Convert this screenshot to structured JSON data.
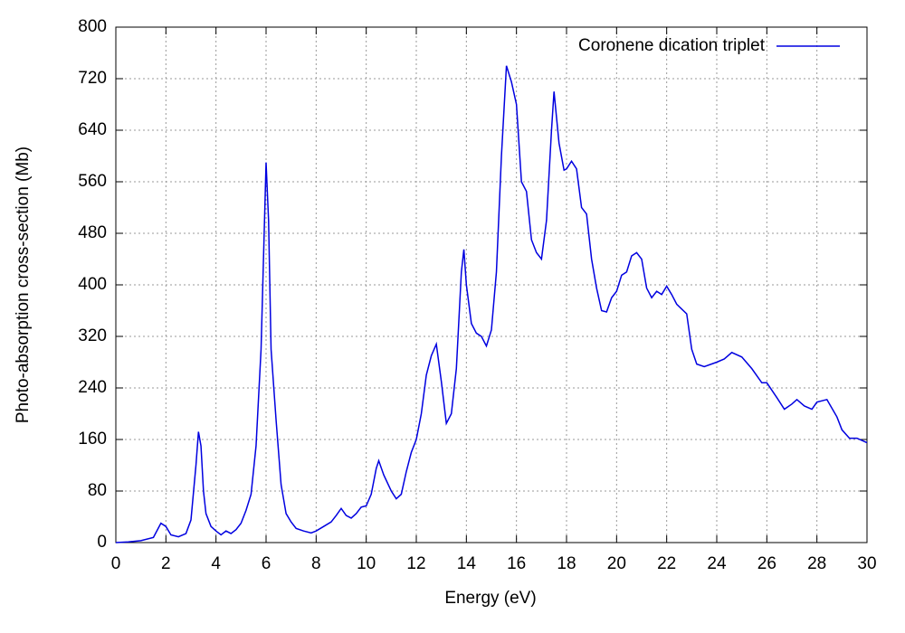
{
  "chart_data": {
    "type": "line",
    "xlabel": "Energy (eV)",
    "ylabel": "Photo-absorption cross-section (Mb)",
    "x": [
      0,
      0.5,
      1.0,
      1.5,
      1.8,
      2.0,
      2.2,
      2.5,
      2.8,
      3.0,
      3.2,
      3.3,
      3.4,
      3.5,
      3.6,
      3.8,
      4.0,
      4.2,
      4.4,
      4.6,
      4.8,
      5.0,
      5.2,
      5.4,
      5.6,
      5.8,
      6.0,
      6.1,
      6.2,
      6.4,
      6.6,
      6.8,
      7.0,
      7.2,
      7.5,
      7.8,
      8.0,
      8.3,
      8.6,
      8.8,
      9.0,
      9.2,
      9.4,
      9.6,
      9.8,
      10.0,
      10.2,
      10.4,
      10.5,
      10.7,
      11.0,
      11.2,
      11.4,
      11.6,
      11.8,
      12.0,
      12.2,
      12.4,
      12.6,
      12.8,
      13.0,
      13.2,
      13.4,
      13.6,
      13.8,
      13.9,
      14.0,
      14.2,
      14.4,
      14.6,
      14.8,
      15.0,
      15.2,
      15.4,
      15.6,
      15.8,
      16.0,
      16.2,
      16.4,
      16.6,
      16.8,
      17.0,
      17.2,
      17.4,
      17.5,
      17.7,
      17.9,
      18.0,
      18.2,
      18.4,
      18.6,
      18.8,
      19.0,
      19.2,
      19.4,
      19.6,
      19.8,
      20.0,
      20.2,
      20.4,
      20.6,
      20.8,
      21.0,
      21.2,
      21.4,
      21.6,
      21.8,
      22.0,
      22.2,
      22.4,
      22.8,
      23.0,
      23.2,
      23.5,
      24.0,
      24.3,
      24.6,
      25.0,
      25.4,
      25.8,
      26.0,
      26.4,
      26.7,
      27.0,
      27.2,
      27.5,
      27.8,
      28.0,
      28.4,
      28.8,
      29.0,
      29.3,
      29.6,
      30.0
    ],
    "series": [
      {
        "name": "Coronene dication triplet",
        "color": "#0000e0",
        "values": [
          0,
          1,
          3,
          8,
          30,
          25,
          12,
          9,
          14,
          35,
          120,
          172,
          150,
          80,
          45,
          25,
          18,
          12,
          18,
          14,
          20,
          30,
          50,
          75,
          150,
          300,
          590,
          500,
          300,
          190,
          90,
          45,
          32,
          22,
          18,
          15,
          18,
          25,
          32,
          42,
          53,
          42,
          38,
          45,
          55,
          57,
          75,
          115,
          127,
          105,
          80,
          68,
          75,
          110,
          140,
          160,
          200,
          260,
          290,
          308,
          250,
          185,
          200,
          270,
          420,
          455,
          400,
          340,
          325,
          320,
          305,
          330,
          420,
          600,
          740,
          715,
          680,
          560,
          545,
          470,
          450,
          440,
          500,
          640,
          700,
          620,
          578,
          580,
          592,
          580,
          520,
          510,
          440,
          395,
          360,
          358,
          380,
          390,
          415,
          420,
          445,
          450,
          440,
          395,
          380,
          390,
          385,
          398,
          385,
          370,
          355,
          300,
          277,
          273,
          280,
          285,
          295,
          288,
          270,
          248,
          248,
          225,
          207,
          215,
          222,
          212,
          207,
          218,
          222,
          195,
          175,
          162,
          162,
          155
        ]
      }
    ],
    "xlim": [
      0,
      30
    ],
    "ylim": [
      0,
      800
    ],
    "xticks": [
      0,
      2,
      4,
      6,
      8,
      10,
      12,
      14,
      16,
      18,
      20,
      22,
      24,
      26,
      28,
      30
    ],
    "yticks": [
      0,
      80,
      160,
      240,
      320,
      400,
      480,
      560,
      640,
      720,
      800
    ],
    "grid": true,
    "legend": "top-right"
  }
}
